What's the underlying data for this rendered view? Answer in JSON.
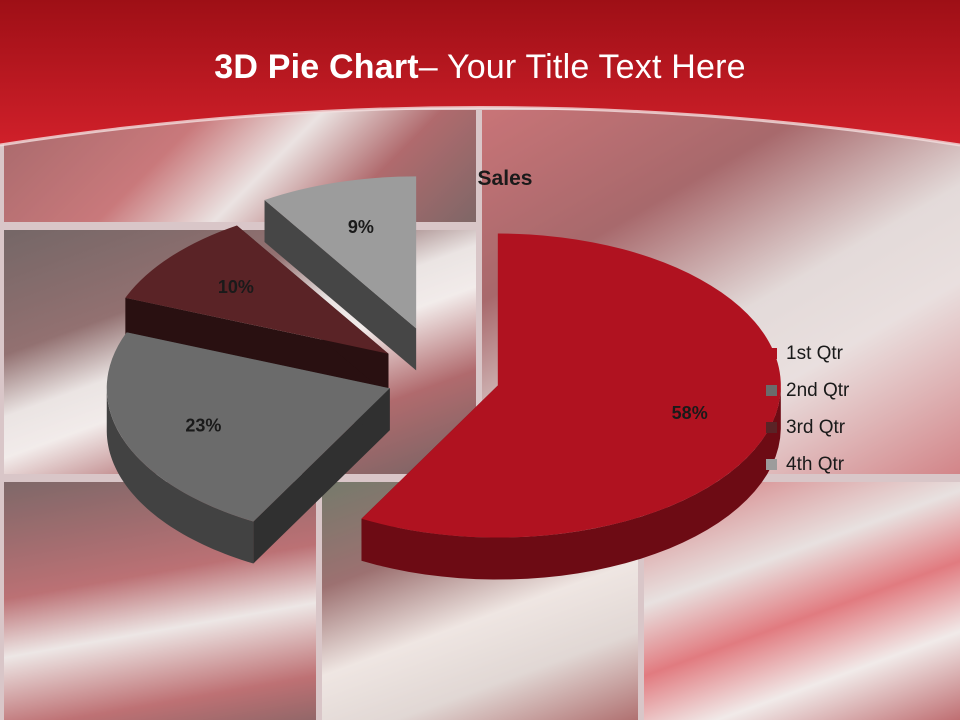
{
  "slide": {
    "title_bold": "3D Pie Chart",
    "title_rest": "– Your Title Text Here"
  },
  "chart_data": {
    "type": "pie",
    "title": "Sales",
    "categories": [
      "1st Qtr",
      "2nd Qtr",
      "3rd Qtr",
      "4th Qtr"
    ],
    "values": [
      58,
      23,
      10,
      9
    ],
    "data_labels": [
      "58%",
      "23%",
      "10%",
      "9%"
    ],
    "exploded": true,
    "three_d": true,
    "legend_position": "right",
    "colors": [
      "#b01220",
      "#6b6b6b",
      "#5a2326",
      "#9c9c9c"
    ]
  },
  "colors": {
    "header_red": "#c0151e",
    "title_text": "#ffffff"
  }
}
